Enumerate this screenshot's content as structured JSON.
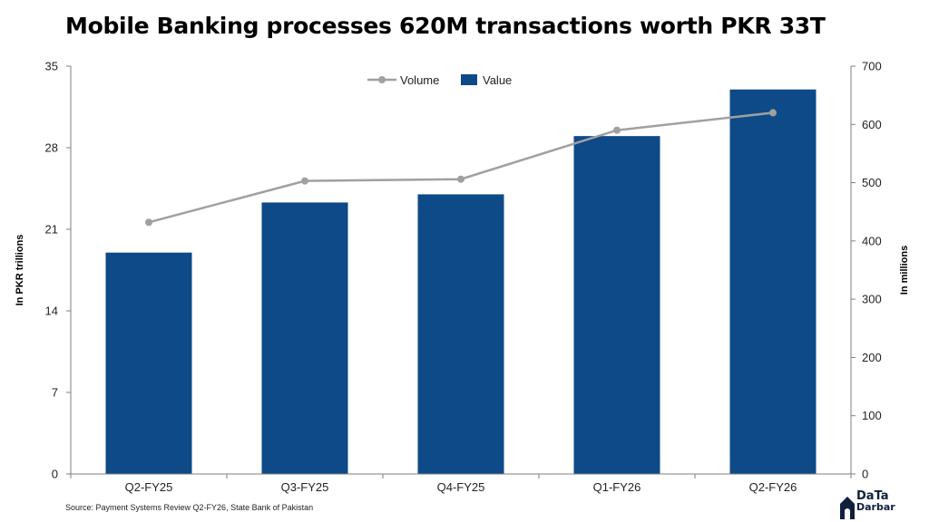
{
  "title": "Mobile Banking processes 620M transactions worth PKR 33T",
  "source": "Source: Payment Systems Review Q2-FY26, State Bank of Pakistan",
  "logo": {
    "line1": "DaTa",
    "line2": "Darbar"
  },
  "colors": {
    "bar": "#0d4a87",
    "line": "#a0a0a0",
    "axis": "#7f7f7f"
  },
  "chart_data": {
    "type": "bar",
    "categories": [
      "Q2-FY25",
      "Q3-FY25",
      "Q4-FY25",
      "Q1-FY26",
      "Q2-FY26"
    ],
    "series": [
      {
        "name": "Value",
        "type": "bar",
        "axis": "left",
        "values": [
          19.0,
          23.3,
          24.0,
          29.0,
          33.0
        ]
      },
      {
        "name": "Volume",
        "type": "line",
        "axis": "right",
        "values": [
          432,
          503,
          506,
          590,
          620
        ]
      }
    ],
    "ylabel": "In PKR trillions",
    "y2label": "In millions",
    "ylim": [
      0,
      35
    ],
    "yticks": [
      "0",
      "7",
      "14",
      "21",
      "28",
      "35"
    ],
    "y2lim": [
      0,
      700
    ],
    "y2ticks": [
      "0",
      "100",
      "200",
      "300",
      "400",
      "500",
      "600",
      "700"
    ],
    "grid": false,
    "legend": "top-center"
  }
}
